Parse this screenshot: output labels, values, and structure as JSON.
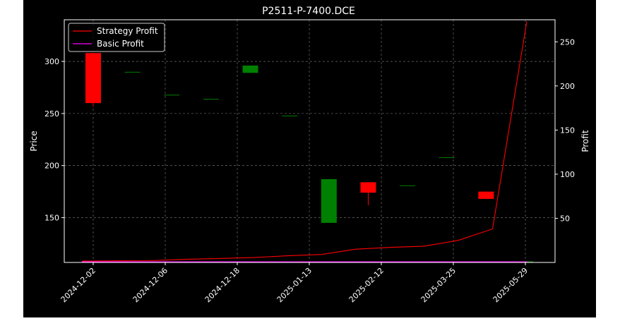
{
  "chart_data": {
    "type": "candlestick+line",
    "title": "P2511-P-7400.DCE",
    "ylabel_left": "Price",
    "ylabel_right": "Profit",
    "xlabel": "",
    "grid": true,
    "legend_position": "top-left",
    "x_tick_labels": [
      "2024-12-02",
      "2024-12-06",
      "2024-12-18",
      "2025-01-13",
      "2025-02-12",
      "2025-03-25",
      "2025-05-29"
    ],
    "price_axis": {
      "ylim": [
        107,
        340
      ],
      "ticks": [
        150,
        200,
        250,
        300
      ]
    },
    "profit_axis": {
      "ylim": [
        0,
        275
      ],
      "ticks": [
        50,
        100,
        150,
        200,
        250
      ]
    },
    "candles": [
      {
        "open": 308,
        "close": 260,
        "high": 308,
        "low": 257
      },
      {
        "open": 290,
        "close": 290,
        "high": 290,
        "low": 290
      },
      {
        "open": 268,
        "close": 268,
        "high": 268,
        "low": 268
      },
      {
        "open": 264,
        "close": 264,
        "high": 264,
        "low": 264
      },
      {
        "open": 289,
        "close": 296,
        "high": 296,
        "low": 289
      },
      {
        "open": 248,
        "close": 248,
        "high": 248,
        "low": 248
      },
      {
        "open": 145,
        "close": 187,
        "high": 187,
        "low": 145
      },
      {
        "open": 184,
        "close": 174,
        "high": 184,
        "low": 162
      },
      {
        "open": 181,
        "close": 181,
        "high": 181,
        "low": 181
      },
      {
        "open": 208,
        "close": 208,
        "high": 208,
        "low": 208
      },
      {
        "open": 175,
        "close": 168,
        "high": 175,
        "low": 168
      },
      {
        "open": 108,
        "close": 108,
        "high": 108,
        "low": 108
      }
    ],
    "series": [
      {
        "name": "Strategy Profit",
        "color": "#ff0000",
        "values": [
          1.5,
          1.8,
          2.0,
          3.5,
          4.5,
          5.5,
          7.5,
          9,
          15,
          17,
          18.5,
          25,
          38,
          273
        ]
      },
      {
        "name": "Basic Profit",
        "color": "#ff00ff",
        "values": [
          0.8,
          0.8,
          0.8,
          0.8,
          0.8,
          0.8,
          0.8,
          0.8,
          0.8,
          0.8,
          0.8,
          0.8,
          0.8,
          0.8
        ]
      }
    ],
    "colors": {
      "up": "#008000",
      "down": "#ff0000"
    }
  }
}
